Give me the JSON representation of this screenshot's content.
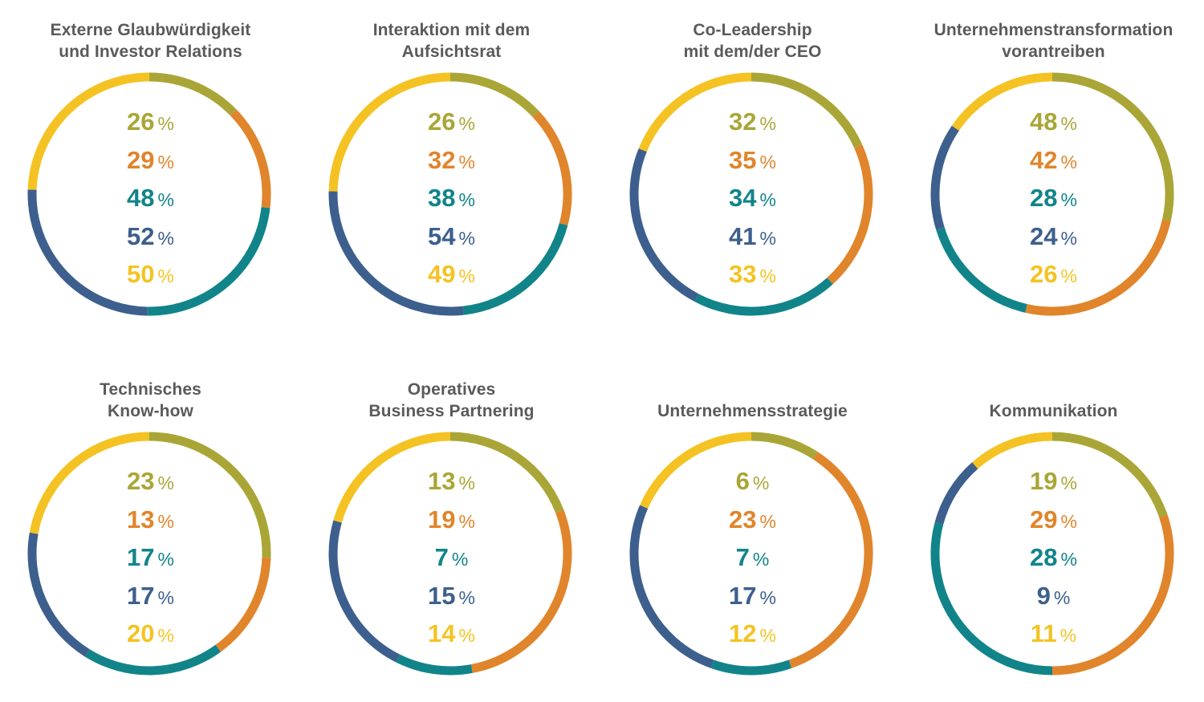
{
  "colors": {
    "olive": "#a9a637",
    "orange": "#e0852b",
    "teal": "#11848a",
    "navy": "#3d5f8d",
    "yellow": "#f4c323",
    "title": "#5a5a5a"
  },
  "chart_data": [
    {
      "type": "pie",
      "title": [
        "Externe Glaubwürdigkeit",
        "und Investor Relations"
      ],
      "values": [
        26,
        29,
        48,
        52,
        50
      ],
      "unit": "%"
    },
    {
      "type": "pie",
      "title": [
        "Interaktion mit dem",
        "Aufsichtsrat"
      ],
      "values": [
        26,
        32,
        38,
        54,
        49
      ],
      "unit": "%"
    },
    {
      "type": "pie",
      "title": [
        "Co-Leadership",
        "mit dem/der CEO"
      ],
      "values": [
        32,
        35,
        34,
        41,
        33
      ],
      "unit": "%"
    },
    {
      "type": "pie",
      "title": [
        "Unternehmenstransformation",
        "vorantreiben"
      ],
      "values": [
        48,
        42,
        28,
        24,
        26
      ],
      "unit": "%"
    },
    {
      "type": "pie",
      "title": [
        "Technisches",
        "Know-how"
      ],
      "values": [
        23,
        13,
        17,
        17,
        20
      ],
      "unit": "%"
    },
    {
      "type": "pie",
      "title": [
        "Operatives",
        "Business Partnering"
      ],
      "values": [
        13,
        19,
        7,
        15,
        14
      ],
      "unit": "%"
    },
    {
      "type": "pie",
      "title": [
        "Unternehmensstrategie"
      ],
      "values": [
        6,
        23,
        7,
        17,
        12
      ],
      "unit": "%"
    },
    {
      "type": "pie",
      "title": [
        "Kommunikation"
      ],
      "values": [
        19,
        29,
        28,
        9,
        11
      ],
      "unit": "%"
    }
  ]
}
